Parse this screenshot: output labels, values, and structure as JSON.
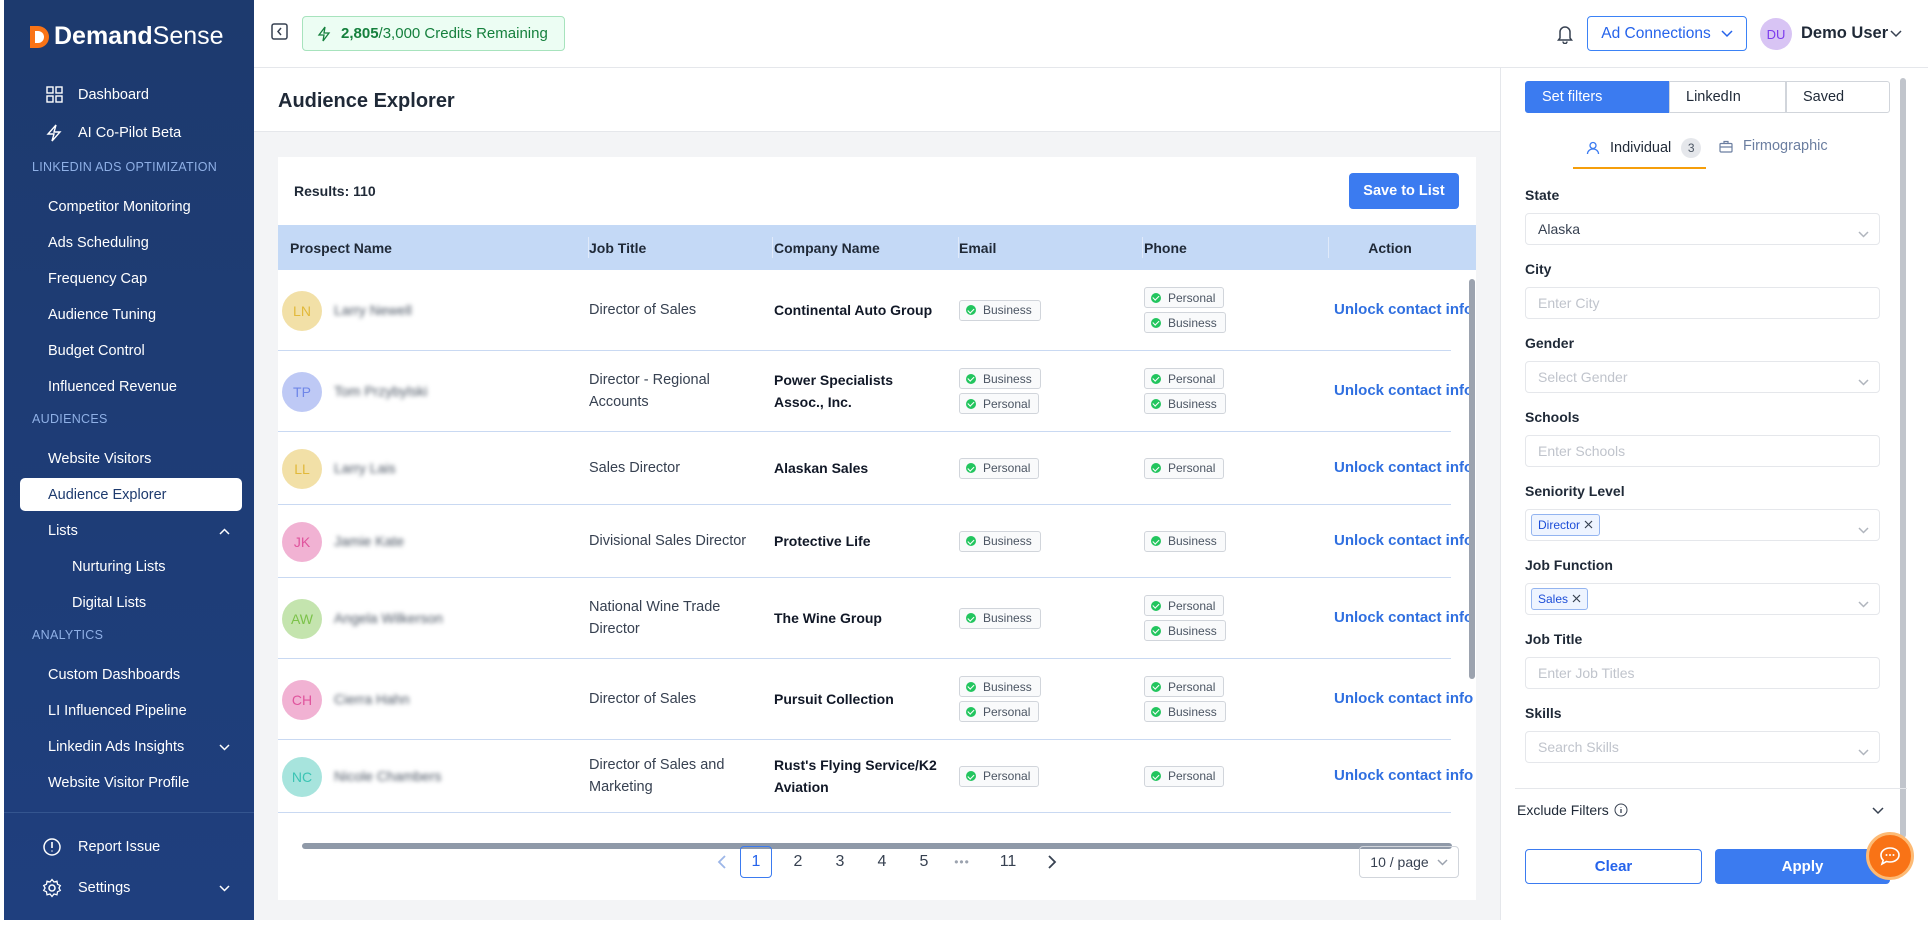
{
  "sidebar": {
    "brand_primary": "Demand",
    "brand_secondary": "Sense",
    "top_items": [
      "Dashboard",
      "AI Co-Pilot Beta"
    ],
    "sections": [
      {
        "title": "LINKEDIN ADS OPTIMIZATION",
        "items": [
          {
            "label": "Competitor Monitoring"
          },
          {
            "label": "Ads Scheduling"
          },
          {
            "label": "Frequency Cap"
          },
          {
            "label": "Audience Tuning"
          },
          {
            "label": "Budget Control"
          },
          {
            "label": "Influenced Revenue"
          }
        ]
      },
      {
        "title": "AUDIENCES",
        "items": [
          {
            "label": "Website Visitors"
          },
          {
            "label": "Audience Explorer",
            "active": true
          },
          {
            "label": "Lists",
            "expanded": true,
            "children": [
              "Nurturing Lists",
              "Digital Lists"
            ]
          }
        ]
      },
      {
        "title": "ANALYTICS",
        "items": [
          {
            "label": "Custom Dashboards"
          },
          {
            "label": "LI Influenced Pipeline"
          },
          {
            "label": "Linkedin Ads Insights",
            "expanded": false
          },
          {
            "label": "Website Visitor Profile"
          }
        ]
      }
    ],
    "footer_items": [
      "Report Issue",
      "Settings"
    ]
  },
  "topbar": {
    "credits_used": "2,805",
    "credits_rest": "/3,000 Credits Remaining",
    "ad_connections": "Ad Connections",
    "user_initials": "DU",
    "user_name": "Demo User"
  },
  "main": {
    "title": "Audience Explorer",
    "results": "Results: 110",
    "save_button": "Save to List",
    "columns": [
      "Prospect Name",
      "Job Title",
      "Company Name",
      "Email",
      "Phone",
      "Action"
    ],
    "rows": [
      {
        "initials": "LN",
        "color": "#e2b93b",
        "name": "Larry Newell",
        "job_title": "Director of Sales",
        "company": "Continental Auto Group",
        "email": [
          "Business"
        ],
        "phone": [
          "Personal",
          "Business"
        ],
        "action": "Unlock contact info"
      },
      {
        "initials": "TP",
        "color": "#6f86e8",
        "name": "Tom Przybylski",
        "job_title": "Director - Regional Accounts",
        "company": "Power Specialists Assoc., Inc.",
        "email": [
          "Business",
          "Personal"
        ],
        "phone": [
          "Personal",
          "Business"
        ],
        "action": "Unlock contact info"
      },
      {
        "initials": "LL",
        "color": "#e2b93b",
        "name": "Larry Lais",
        "job_title": "Sales Director",
        "company": "Alaskan Sales",
        "email": [
          "Personal"
        ],
        "phone": [
          "Personal"
        ],
        "action": "Unlock contact info"
      },
      {
        "initials": "JK",
        "color": "#e0549d",
        "name": "Jamie Kate",
        "job_title": "Divisional Sales Director",
        "company": "Protective Life",
        "email": [
          "Business"
        ],
        "phone": [
          "Business"
        ],
        "action": "Unlock contact info"
      },
      {
        "initials": "AW",
        "color": "#7cc24a",
        "name": "Angela Wilkerson",
        "job_title": "National Wine Trade Director",
        "company": "The Wine Group",
        "email": [
          "Business"
        ],
        "phone": [
          "Personal",
          "Business"
        ],
        "action": "Unlock contact info"
      },
      {
        "initials": "CH",
        "color": "#e0549d",
        "name": "Cierra Hahn",
        "job_title": "Director of Sales",
        "company": "Pursuit Collection",
        "email": [
          "Business",
          "Personal"
        ],
        "phone": [
          "Personal",
          "Business"
        ],
        "action": "Unlock contact info"
      },
      {
        "initials": "NC",
        "color": "#3cc4b4",
        "name": "Nicole Chambers",
        "job_title": "Director of Sales and Marketing",
        "company": "Rust's Flying Service/K2 Aviation",
        "email": [
          "Personal"
        ],
        "phone": [
          "Personal"
        ],
        "action": "Unlock contact info"
      }
    ],
    "pagination": {
      "pages": [
        1,
        2,
        3,
        4,
        5
      ],
      "ellipsis": "•••",
      "last_page": 11,
      "current": 1,
      "page_size": "10 / page"
    }
  },
  "filters": {
    "tabs": [
      "Set filters",
      "LinkedIn",
      "Saved"
    ],
    "subtabs": [
      {
        "label": "Individual",
        "badge": 3
      },
      {
        "label": "Firmographic"
      }
    ],
    "fields": [
      {
        "label": "State",
        "value": "Alaska",
        "dropdown": true
      },
      {
        "label": "City",
        "placeholder": "Enter City"
      },
      {
        "label": "Gender",
        "placeholder": "Select Gender",
        "dropdown": true
      },
      {
        "label": "Schools",
        "placeholder": "Enter Schools"
      },
      {
        "label": "Seniority Level",
        "tags": [
          "Director"
        ],
        "dropdown": true
      },
      {
        "label": "Job Function",
        "tags": [
          "Sales"
        ],
        "dropdown": true
      },
      {
        "label": "Job Title",
        "placeholder": "Enter Job Titles"
      },
      {
        "label": "Skills",
        "placeholder": "Search Skills",
        "dropdown": true
      }
    ],
    "exclude": "Exclude Filters",
    "clear": "Clear",
    "apply": "Apply"
  }
}
